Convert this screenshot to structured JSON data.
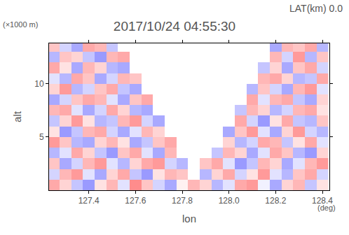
{
  "chart_data": {
    "type": "heatmap",
    "title": "2017/10/24 04:55:30",
    "x_label": "lon",
    "y_label": "alt",
    "annotations": [
      "LAT(km) 0.0",
      "(×1000 m)",
      "(deg)"
    ],
    "xlim": [
      127.23,
      128.43
    ],
    "ylim": [
      0,
      13.8
    ],
    "xticks": [
      127.4,
      127.6,
      127.8,
      {
        "value": 128,
        "label": "128.0"
      },
      128.2,
      128.4
    ],
    "yticks": [
      5,
      10
    ],
    "zlim": [
      -1,
      1
    ],
    "x": [
      127.25,
      127.3,
      127.35,
      127.4,
      127.45,
      127.5,
      127.55,
      127.6,
      127.65,
      127.7,
      127.75,
      127.8,
      127.85,
      127.9,
      127.95,
      128.0,
      128.05,
      128.1,
      128.15,
      128.2,
      128.25,
      128.3,
      128.35,
      128.4
    ],
    "y": [
      0.5,
      1.5,
      2.5,
      3.5,
      4.5,
      5.5,
      6.5,
      7.5,
      8.5,
      9.5,
      10.5,
      11.5,
      12.5,
      13.5
    ],
    "z": [
      [
        0.6,
        0.3,
        -0.4,
        -0.7,
        0.2,
        0.5,
        -0.2,
        0.8,
        0.4,
        -0.3,
        -0.6,
        0.1,
        0.5,
        0.3,
        -0.5,
        -0.2,
        0.6,
        0.7,
        -0.1,
        -0.6,
        0.3,
        0.5,
        -0.4,
        0.2
      ],
      [
        -0.3,
        0.5,
        0.7,
        -0.2,
        -0.6,
        0.3,
        0.6,
        -0.4,
        -0.7,
        0.2,
        0.5,
        0.4,
        null,
        -0.5,
        0.3,
        0.6,
        -0.3,
        0.2,
        0.7,
        -0.2,
        -0.5,
        0.4,
        0.6,
        -0.3
      ],
      [
        0.4,
        -0.6,
        -0.3,
        0.5,
        0.7,
        -0.2,
        -0.5,
        0.3,
        0.6,
        0.7,
        -0.3,
        -0.5,
        null,
        0.4,
        0.6,
        -0.2,
        -0.7,
        -0.4,
        0.5,
        0.3,
        -0.6,
        -0.2,
        0.5,
        0.7
      ],
      [
        -0.5,
        -0.2,
        0.6,
        0.3,
        -0.4,
        -0.7,
        0.4,
        0.6,
        -0.2,
        -0.6,
        0.5,
        null,
        null,
        null,
        -0.4,
        0.5,
        0.3,
        -0.6,
        -0.2,
        0.6,
        0.4,
        -0.5,
        -0.7,
        0.3
      ],
      [
        0.7,
        0.4,
        -0.5,
        -0.6,
        0.3,
        0.5,
        0.2,
        -0.6,
        -0.4,
        0.4,
        0.6,
        null,
        null,
        null,
        null,
        0.3,
        -0.5,
        -0.3,
        0.6,
        0.5,
        -0.4,
        0.2,
        0.6,
        -0.2
      ],
      [
        0.2,
        -0.7,
        -0.4,
        0.5,
        0.6,
        -0.3,
        -0.6,
        -0.2,
        0.5,
        0.3,
        null,
        null,
        null,
        null,
        null,
        -0.6,
        0.4,
        0.7,
        -0.2,
        -0.6,
        0.3,
        0.7,
        -0.3,
        -0.5
      ],
      [
        -0.4,
        0.3,
        0.7,
        0.2,
        -0.5,
        -0.4,
        0.5,
        0.7,
        -0.3,
        -0.6,
        null,
        null,
        null,
        null,
        null,
        null,
        0.6,
        -0.3,
        -0.7,
        0.2,
        0.6,
        -0.4,
        -0.5,
        0.4
      ],
      [
        0.5,
        0.6,
        -0.2,
        -0.6,
        -0.3,
        0.6,
        0.3,
        -0.5,
        -0.6,
        null,
        null,
        null,
        null,
        null,
        null,
        null,
        -0.4,
        0.5,
        0.3,
        -0.5,
        -0.3,
        0.5,
        0.6,
        0.2
      ],
      [
        -0.6,
        -0.3,
        0.4,
        0.6,
        0.5,
        -0.2,
        -0.6,
        0.4,
        0.6,
        null,
        null,
        null,
        null,
        null,
        null,
        null,
        null,
        0.6,
        -0.2,
        0.5,
        0.6,
        -0.4,
        -0.6,
        0.3
      ],
      [
        0.3,
        0.7,
        -0.5,
        -0.3,
        0.4,
        0.6,
        -0.4,
        -0.6,
        null,
        null,
        null,
        null,
        null,
        null,
        null,
        null,
        null,
        -0.5,
        0.4,
        -0.3,
        -0.6,
        0.5,
        0.7,
        -0.2
      ],
      [
        -0.2,
        -0.5,
        0.6,
        0.4,
        -0.6,
        -0.3,
        0.5,
        0.4,
        null,
        null,
        null,
        null,
        null,
        null,
        null,
        null,
        null,
        null,
        0.5,
        0.6,
        0.3,
        -0.5,
        -0.4,
        0.6
      ],
      [
        0.6,
        0.2,
        -0.6,
        0.5,
        0.3,
        -0.5,
        -0.6,
        null,
        null,
        null,
        null,
        null,
        null,
        null,
        null,
        null,
        null,
        null,
        -0.4,
        0.3,
        -0.6,
        0.4,
        0.6,
        -0.3
      ],
      [
        -0.5,
        0.4,
        0.3,
        -0.4,
        -0.7,
        0.5,
        0.6,
        null,
        null,
        null,
        null,
        null,
        null,
        null,
        null,
        null,
        null,
        null,
        null,
        0.5,
        -0.3,
        0.7,
        -0.5,
        0.4
      ],
      [
        0.4,
        -0.3,
        -0.6,
        0.6,
        0.5,
        -0.4,
        null,
        null,
        null,
        null,
        null,
        null,
        null,
        null,
        null,
        null,
        null,
        null,
        null,
        -0.6,
        0.5,
        0.4,
        0.6,
        -0.5
      ]
    ]
  }
}
